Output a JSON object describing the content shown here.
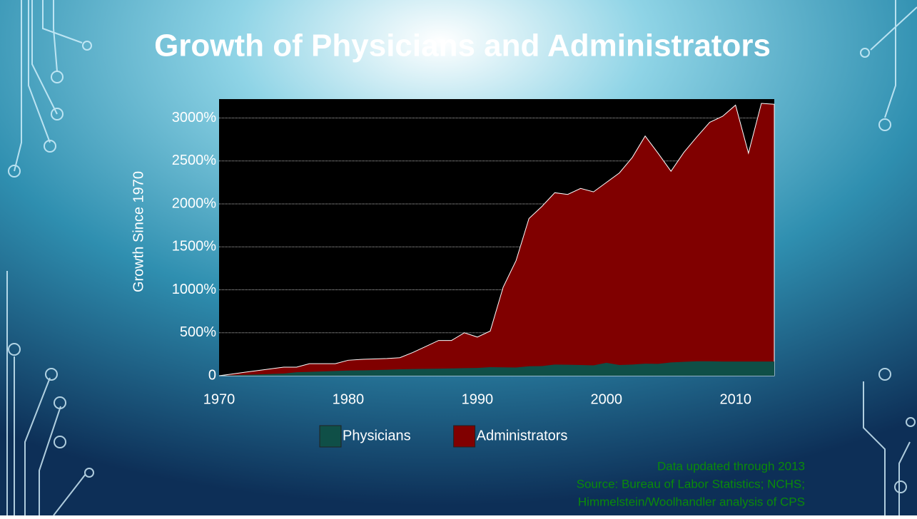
{
  "chart_data": {
    "type": "area",
    "title": "Growth of Physicians and Administrators",
    "y_label": "Growth Since 1970",
    "x": [
      1970,
      1971,
      1972,
      1973,
      1974,
      1975,
      1976,
      1977,
      1978,
      1979,
      1980,
      1981,
      1982,
      1983,
      1984,
      1985,
      1986,
      1987,
      1988,
      1989,
      1990,
      1991,
      1992,
      1993,
      1994,
      1995,
      1996,
      1997,
      1998,
      1999,
      2000,
      2001,
      2002,
      2003,
      2004,
      2005,
      2006,
      2007,
      2008,
      2009,
      2010,
      2011,
      2012,
      2013
    ],
    "series": [
      {
        "name": "Administrators",
        "color": "#800000",
        "values": [
          0,
          20,
          40,
          60,
          80,
          100,
          100,
          140,
          140,
          140,
          180,
          190,
          195,
          200,
          210,
          270,
          340,
          410,
          410,
          500,
          450,
          520,
          1030,
          1340,
          1830,
          1970,
          2130,
          2110,
          2180,
          2140,
          2250,
          2360,
          2540,
          2790,
          2590,
          2380,
          2600,
          2780,
          2950,
          3020,
          3150,
          2590,
          3170,
          3160
        ]
      },
      {
        "name": "Physicians",
        "color": "#0f4f47",
        "values": [
          0,
          5,
          10,
          15,
          20,
          25,
          40,
          45,
          50,
          55,
          60,
          62,
          65,
          70,
          75,
          78,
          80,
          82,
          85,
          88,
          90,
          100,
          98,
          95,
          110,
          112,
          130,
          128,
          125,
          120,
          150,
          125,
          130,
          140,
          138,
          155,
          162,
          168,
          168,
          165,
          165,
          165,
          165,
          165
        ]
      }
    ],
    "legend_order": [
      1,
      0
    ],
    "xlim": [
      1970,
      2013
    ],
    "xticks": [
      1970,
      1980,
      1990,
      2000,
      2010
    ],
    "ylim": [
      0,
      3220
    ],
    "yticks": [
      0,
      {
        "value": 500,
        "label": "500%"
      },
      {
        "value": 1000,
        "label": "1000%"
      },
      {
        "value": 1500,
        "label": "1500%"
      },
      {
        "value": 2000,
        "label": "2000%"
      },
      {
        "value": 2500,
        "label": "2500%"
      },
      {
        "value": 3000,
        "label": "3000%"
      }
    ],
    "grid": true,
    "notes": [
      "Data updated through 2013",
      "Source: Bureau of Labor Statistics; NCHS;",
      "Himmelstein/Woolhandler analysis of CPS"
    ]
  }
}
